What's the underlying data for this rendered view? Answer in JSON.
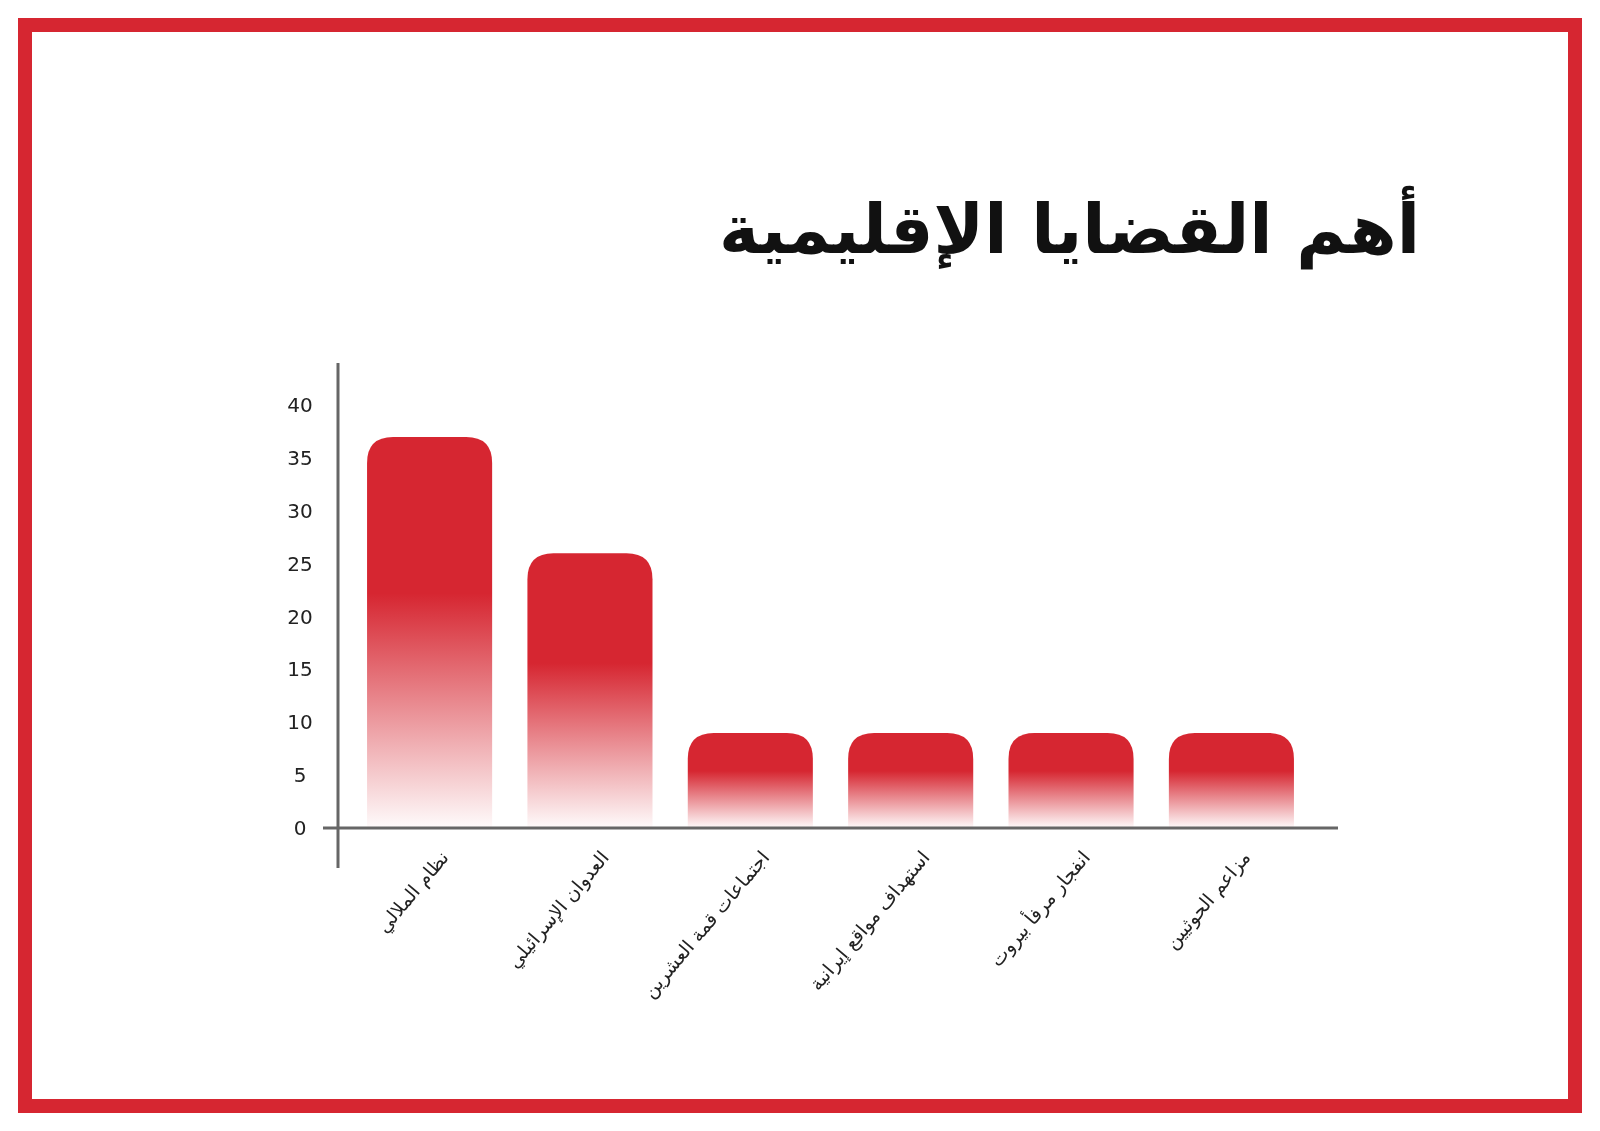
{
  "chart_data": {
    "type": "bar",
    "title": "أهم القضايا الإقليمية",
    "categories": [
      "نظام الملالي",
      "العدوان الإسرائيلي",
      "اجتماعات قمة العشرين",
      "استهداف مواقع إيرانية",
      "انفجار مرفأ بيروت",
      "مزاعم الحوثيين"
    ],
    "values": [
      37,
      26,
      9,
      9,
      9,
      9
    ],
    "color": "#d62631",
    "ylim": [
      0,
      44
    ],
    "yticks": [
      0,
      5,
      10,
      15,
      20,
      25,
      30,
      35,
      40
    ],
    "grid": false
  }
}
